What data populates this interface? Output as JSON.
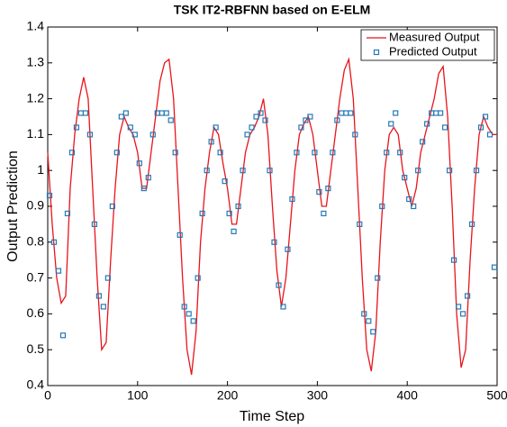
{
  "chart_data": {
    "type": "line",
    "title": "TSK IT2-RBFNN based on E-ELM",
    "xlabel": "Time Step",
    "ylabel": "Output Prediction",
    "xlim": [
      0,
      500
    ],
    "xticks": [
      0,
      100,
      200,
      300,
      400,
      500
    ],
    "ylim": [
      0.4,
      1.4
    ],
    "yticks": [
      0.4,
      0.5,
      0.6,
      0.7,
      0.8,
      0.9,
      1,
      1.1,
      1.2,
      1.3,
      1.4
    ],
    "grid": false,
    "legend": "upper right",
    "series": [
      {
        "name": "Measured Output",
        "type": "line",
        "color": "#e8141b",
        "x": [
          0,
          5,
          10,
          15,
          20,
          25,
          30,
          35,
          40,
          45,
          50,
          55,
          60,
          65,
          70,
          75,
          80,
          85,
          90,
          95,
          100,
          105,
          110,
          115,
          120,
          125,
          130,
          135,
          140,
          145,
          150,
          155,
          160,
          165,
          170,
          175,
          180,
          185,
          190,
          195,
          200,
          205,
          210,
          215,
          220,
          225,
          230,
          235,
          240,
          245,
          250,
          255,
          260,
          265,
          270,
          275,
          280,
          285,
          290,
          295,
          300,
          305,
          310,
          315,
          320,
          325,
          330,
          335,
          340,
          345,
          350,
          355,
          360,
          365,
          370,
          375,
          380,
          385,
          390,
          395,
          400,
          405,
          410,
          415,
          420,
          425,
          430,
          435,
          440,
          445,
          450,
          455,
          460,
          465,
          470,
          475,
          480,
          485,
          490,
          495,
          500
        ],
        "values": [
          1.05,
          0.85,
          0.7,
          0.63,
          0.65,
          0.95,
          1.1,
          1.2,
          1.26,
          1.2,
          0.95,
          0.7,
          0.5,
          0.52,
          0.75,
          0.95,
          1.1,
          1.15,
          1.12,
          1.1,
          1.05,
          0.95,
          0.95,
          1.05,
          1.15,
          1.25,
          1.3,
          1.31,
          1.2,
          0.95,
          0.7,
          0.5,
          0.43,
          0.55,
          0.8,
          0.95,
          1.05,
          1.12,
          1.1,
          1.02,
          0.95,
          0.85,
          0.85,
          0.95,
          1.05,
          1.1,
          1.12,
          1.15,
          1.2,
          1.1,
          0.9,
          0.72,
          0.62,
          0.7,
          0.85,
          1.0,
          1.1,
          1.13,
          1.15,
          1.1,
          1.0,
          0.9,
          0.9,
          1.0,
          1.1,
          1.2,
          1.28,
          1.31,
          1.2,
          0.95,
          0.7,
          0.5,
          0.44,
          0.55,
          0.8,
          1.0,
          1.1,
          1.12,
          1.1,
          1.0,
          0.95,
          0.9,
          0.95,
          1.05,
          1.1,
          1.15,
          1.2,
          1.27,
          1.29,
          1.15,
          0.9,
          0.6,
          0.45,
          0.5,
          0.75,
          0.95,
          1.1,
          1.15,
          1.12,
          1.1,
          1.1
        ]
      },
      {
        "name": "Predicted Output",
        "type": "scatter",
        "color": "#2479b5",
        "x": [
          2,
          7,
          12,
          17,
          22,
          27,
          32,
          37,
          42,
          47,
          52,
          57,
          62,
          67,
          72,
          77,
          82,
          87,
          92,
          97,
          102,
          107,
          112,
          117,
          122,
          127,
          132,
          137,
          142,
          147,
          152,
          157,
          162,
          167,
          172,
          177,
          182,
          187,
          192,
          197,
          202,
          207,
          212,
          217,
          222,
          227,
          232,
          237,
          242,
          247,
          252,
          257,
          262,
          267,
          272,
          277,
          282,
          287,
          292,
          297,
          302,
          307,
          312,
          317,
          322,
          327,
          332,
          337,
          342,
          347,
          352,
          357,
          362,
          367,
          372,
          377,
          382,
          387,
          392,
          397,
          402,
          407,
          412,
          417,
          422,
          427,
          432,
          437,
          442,
          447,
          452,
          457,
          462,
          467,
          472,
          477,
          482,
          487,
          492,
          497
        ],
        "values": [
          0.93,
          0.8,
          0.72,
          0.54,
          0.88,
          1.05,
          1.12,
          1.16,
          1.16,
          1.1,
          0.85,
          0.65,
          0.62,
          0.7,
          0.9,
          1.05,
          1.15,
          1.16,
          1.12,
          1.1,
          1.02,
          0.95,
          0.98,
          1.1,
          1.16,
          1.16,
          1.16,
          1.14,
          1.05,
          0.82,
          0.62,
          0.6,
          0.58,
          0.7,
          0.88,
          1.0,
          1.08,
          1.12,
          1.05,
          0.97,
          0.88,
          0.83,
          0.9,
          1.0,
          1.1,
          1.12,
          1.15,
          1.16,
          1.14,
          1.0,
          0.8,
          0.68,
          0.62,
          0.78,
          0.92,
          1.05,
          1.12,
          1.14,
          1.15,
          1.05,
          0.94,
          0.88,
          0.95,
          1.05,
          1.14,
          1.16,
          1.16,
          1.16,
          1.1,
          0.85,
          0.6,
          0.58,
          0.55,
          0.7,
          0.9,
          1.05,
          1.13,
          1.16,
          1.05,
          0.98,
          0.92,
          0.9,
          1.0,
          1.08,
          1.13,
          1.16,
          1.16,
          1.16,
          1.12,
          1.0,
          0.75,
          0.62,
          0.6,
          0.65,
          0.85,
          1.0,
          1.12,
          1.15,
          1.1,
          0.73
        ]
      }
    ]
  }
}
